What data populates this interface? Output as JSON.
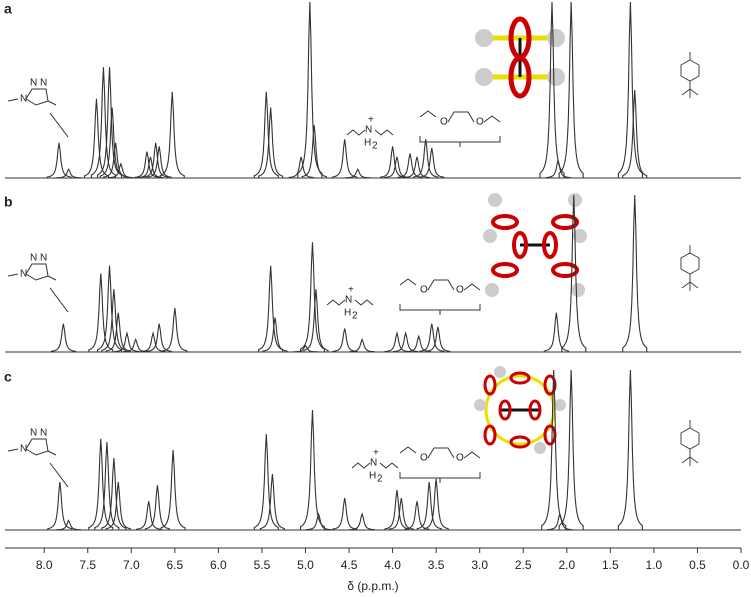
{
  "chart_data": {
    "type": "nmr",
    "x_label": "δ (p.p.m.)",
    "xlim": [
      8.45,
      0.0
    ],
    "xticks": [
      {
        "value": 8,
        "label": "8.0"
      },
      {
        "value": 7.5,
        "label": "7.5"
      },
      {
        "value": 7,
        "label": "7.0"
      },
      {
        "value": 6.5,
        "label": "6.5"
      },
      {
        "value": 6,
        "label": "6.0"
      },
      {
        "value": 5.5,
        "label": "5.5"
      },
      {
        "value": 5,
        "label": "5.0"
      },
      {
        "value": 4.5,
        "label": "4.5"
      },
      {
        "value": 4,
        "label": "4.0"
      },
      {
        "value": 3.5,
        "label": "3.5"
      },
      {
        "value": 3,
        "label": "3.0"
      },
      {
        "value": 2.5,
        "label": "2.5"
      },
      {
        "value": 2,
        "label": "2.0"
      },
      {
        "value": 1.5,
        "label": "1.5"
      },
      {
        "value": 1,
        "label": "1.0"
      },
      {
        "value": 0.5,
        "label": "0.5"
      },
      {
        "value": 0,
        "label": "0.0"
      }
    ],
    "ylim": [
      0,
      100
    ],
    "series": [
      {
        "name": "a",
        "color": "#333333",
        "x": [
          7.83,
          7.72,
          7.4,
          7.32,
          7.25,
          7.22,
          7.18,
          7.12,
          6.82,
          6.78,
          6.72,
          6.68,
          6.53,
          5.45,
          5.4,
          5.05,
          4.95,
          4.9,
          4.55,
          4.4,
          4.0,
          3.95,
          3.8,
          3.72,
          3.62,
          3.55,
          2.17,
          2.1,
          1.95,
          1.27,
          1.22
        ],
        "values": [
          20,
          5,
          45,
          63,
          63,
          40,
          20,
          8,
          15,
          12,
          20,
          18,
          49,
          49,
          40,
          12,
          100,
          30,
          22,
          5,
          18,
          12,
          14,
          12,
          22,
          17,
          100,
          10,
          100,
          100,
          50
        ],
        "labels": {
          "triazole": [
            "N",
            "N",
            "N"
          ],
          "ammonium": "N",
          "charge": "+",
          "hydrogen": "H",
          "subscript": "2",
          "ether": [
            "O",
            "O"
          ]
        }
      },
      {
        "name": "b",
        "color": "#333333",
        "x": [
          7.78,
          7.35,
          7.25,
          7.2,
          7.15,
          7.05,
          6.95,
          6.75,
          6.68,
          6.5,
          5.4,
          5.35,
          5.0,
          4.92,
          4.88,
          4.55,
          4.35,
          3.95,
          3.85,
          3.7,
          3.55,
          3.48,
          2.12,
          1.92,
          1.22
        ],
        "values": [
          18,
          50,
          55,
          40,
          25,
          12,
          8,
          12,
          18,
          28,
          55,
          22,
          4,
          70,
          40,
          15,
          8,
          12,
          12,
          10,
          18,
          16,
          25,
          100,
          100
        ],
        "labels": {
          "triazole": [
            "N",
            "N",
            "N"
          ],
          "ammonium": "N",
          "charge": "+",
          "hydrogen": "H",
          "subscript": "2",
          "ether": [
            "O",
            "O"
          ]
        }
      },
      {
        "name": "c",
        "color": "#333333",
        "x": [
          7.82,
          7.72,
          7.35,
          7.28,
          7.2,
          7.15,
          6.8,
          6.7,
          6.52,
          5.45,
          5.38,
          4.92,
          4.85,
          4.55,
          4.35,
          3.95,
          3.9,
          3.72,
          3.58,
          3.5,
          2.15,
          2.08,
          1.95,
          1.27
        ],
        "values": [
          30,
          6,
          57,
          55,
          45,
          30,
          18,
          28,
          50,
          60,
          35,
          75,
          10,
          20,
          10,
          25,
          20,
          18,
          30,
          32,
          100,
          10,
          100,
          100
        ],
        "labels": {
          "triazole": [
            "N",
            "N",
            "N"
          ],
          "ammonium": "N",
          "charge": "+",
          "hydrogen": "H",
          "subscript": "2",
          "ether": [
            "O",
            "O"
          ]
        }
      }
    ]
  }
}
